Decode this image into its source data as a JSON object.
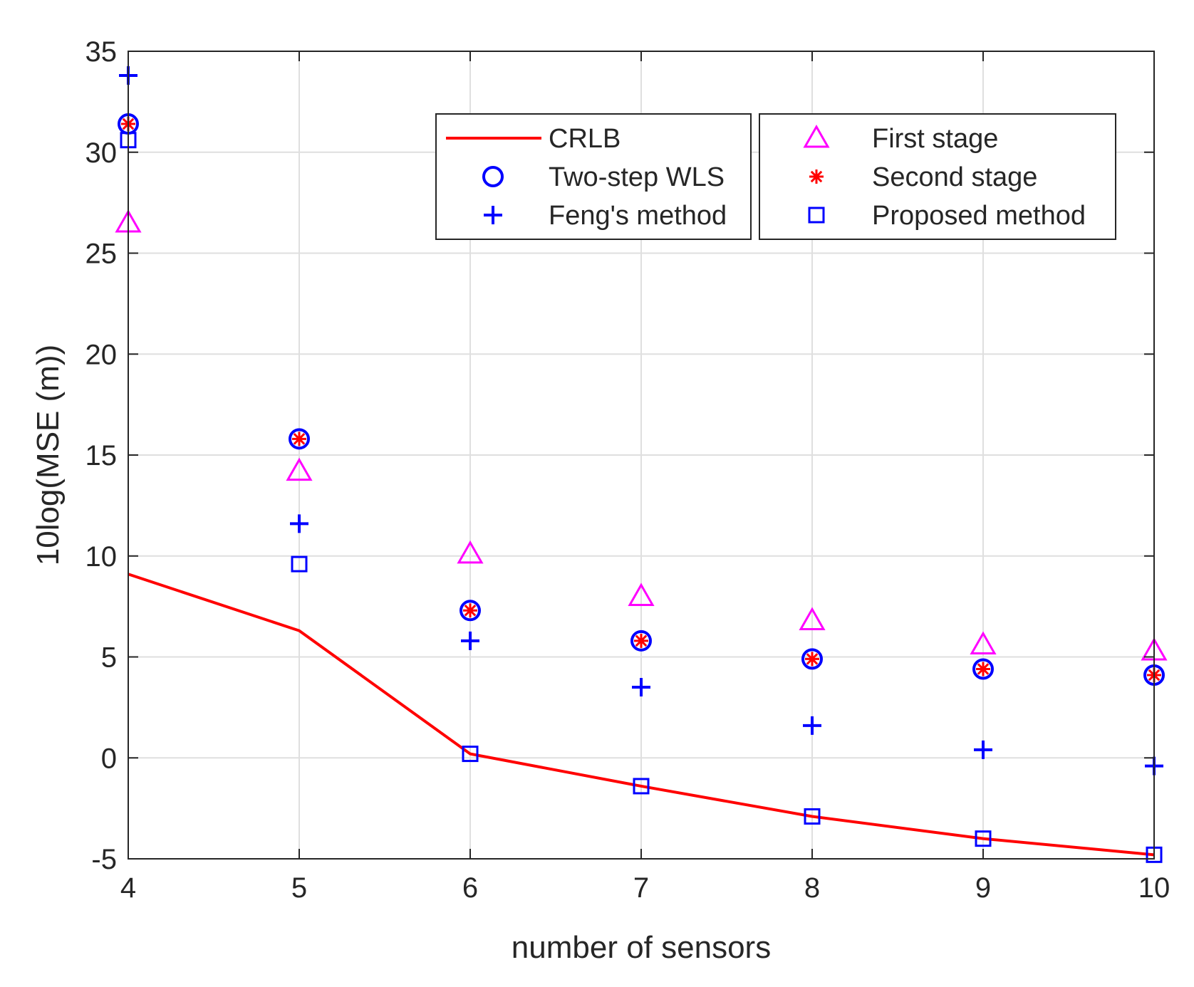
{
  "chart_data": {
    "type": "line",
    "title": "",
    "xlabel": "number of sensors",
    "ylabel": "10log(MSE (m))",
    "xlim": [
      4,
      10
    ],
    "ylim": [
      -5,
      35
    ],
    "xticks": [
      4,
      5,
      6,
      7,
      8,
      9,
      10
    ],
    "yticks": [
      -5,
      0,
      5,
      10,
      15,
      20,
      25,
      30,
      35
    ],
    "grid": true,
    "x": [
      4,
      5,
      6,
      7,
      8,
      9,
      10
    ],
    "series": [
      {
        "name": "CRLB",
        "style": "line",
        "color": "#ff0000",
        "values": [
          9.1,
          6.3,
          0.2,
          -1.4,
          -2.9,
          -4.0,
          -4.8
        ]
      },
      {
        "name": "Two-step WLS",
        "style": "circle",
        "color": "#0000ff",
        "values": [
          31.4,
          15.8,
          7.3,
          5.8,
          4.9,
          4.4,
          4.1
        ]
      },
      {
        "name": "Feng's method",
        "style": "plus",
        "color": "#0000ff",
        "values": [
          33.8,
          11.6,
          5.8,
          3.5,
          1.6,
          0.4,
          -0.4
        ]
      },
      {
        "name": "First stage",
        "style": "triangle",
        "color": "#ff00ff",
        "values": [
          26.5,
          14.2,
          10.1,
          8.0,
          6.8,
          5.6,
          5.3
        ]
      },
      {
        "name": "Second stage",
        "style": "asterisk",
        "color": "#ff0000",
        "values": [
          31.4,
          15.8,
          7.3,
          5.8,
          4.9,
          4.4,
          4.1
        ]
      },
      {
        "name": "Proposed method",
        "style": "square",
        "color": "#0000ff",
        "values": [
          30.6,
          9.6,
          0.2,
          -1.4,
          -2.9,
          -4.0,
          -4.8
        ]
      }
    ],
    "legend": [
      {
        "position": "top-center",
        "entries": [
          "CRLB",
          "Two-step WLS",
          "Feng's method"
        ]
      },
      {
        "position": "top-right",
        "entries": [
          "First stage",
          "Second stage",
          "Proposed method"
        ]
      }
    ]
  }
}
